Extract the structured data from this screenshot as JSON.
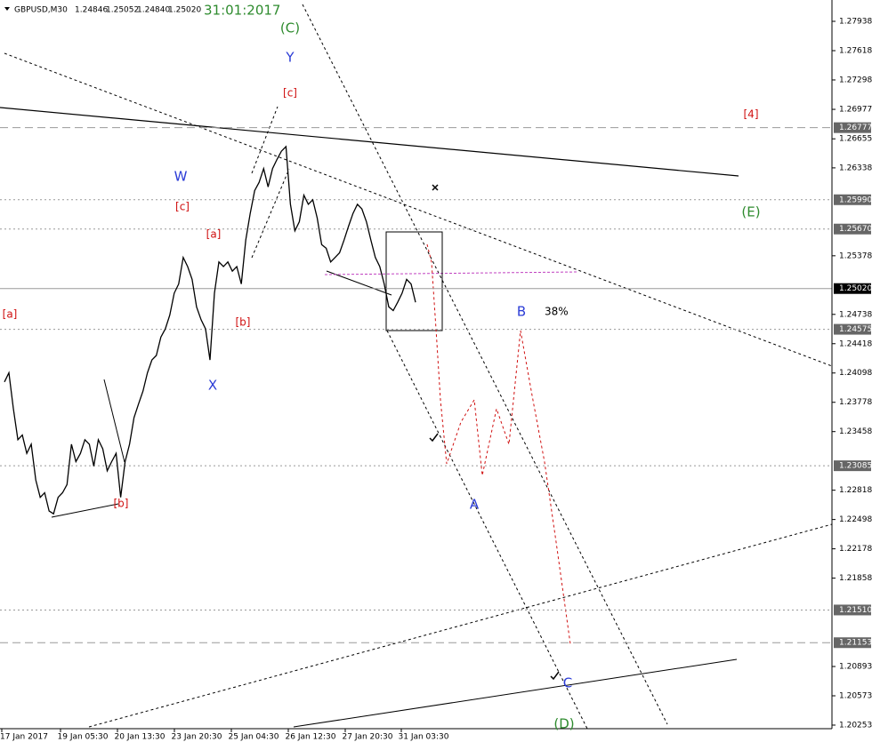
{
  "chart_data": {
    "type": "line",
    "symbol": "GBPUSD,M30",
    "ohlc": [
      1.24846,
      1.25052,
      {
        "value": 1.2484,
        "label": "1.24840"
      },
      {
        "value": 1.2502,
        "label": "1.25020"
      }
    ],
    "date": "31:01:2017",
    "x_labels": [
      "17 Jan 2017",
      "19 Jan 05:30",
      "20 Jan 13:30",
      "23 Jan 20:30",
      "25 Jan 04:30",
      "26 Jan 12:30",
      "27 Jan 20:30",
      "31 Jan 03:30"
    ],
    "series": [
      {
        "name": "GBPUSD",
        "color": "#000000",
        "values": [
          1.24,
          1.241,
          1.2371,
          1.2337,
          1.2342,
          1.2322,
          1.2332,
          1.2293,
          1.2274,
          1.2279,
          1.2259,
          1.2256,
          1.2274,
          1.2279,
          1.2288,
          1.2332,
          1.2313,
          1.2322,
          1.2337,
          1.2332,
          1.2308,
          1.2337,
          1.2327,
          1.2303,
          1.2313,
          1.2322,
          1.2274,
          1.2313,
          1.2332,
          1.2361,
          1.2376,
          1.239,
          1.241,
          1.2424,
          1.2429,
          1.2449,
          1.2458,
          1.2473,
          1.2497,
          1.2507,
          1.2536,
          1.2526,
          1.2512,
          1.2482,
          1.2468,
          1.2458,
          1.2424,
          1.2497,
          1.2531,
          1.2526,
          1.2531,
          1.2521,
          1.2526,
          1.2507,
          1.2555,
          1.2584,
          1.2609,
          1.2618,
          1.2633,
          1.2613,
          1.2633,
          1.2643,
          1.2652,
          1.2657,
          1.2594,
          1.2565,
          1.2575,
          1.2604,
          1.2594,
          1.2599,
          1.2579,
          1.255,
          1.2546,
          1.2531,
          1.2536,
          1.2541,
          1.2555,
          1.257,
          1.2584,
          1.2594,
          1.2589,
          1.2575,
          1.2555,
          1.2536,
          1.2526,
          1.2507,
          1.2482,
          1.2478,
          1.2487,
          1.2497,
          1.2512,
          1.2507,
          1.2487
        ]
      }
    ],
    "ylim": [
      1.20214,
      1.28171
    ],
    "yticks": [
      1.27938,
      1.27618,
      1.27298,
      1.26977,
      1.26655,
      1.26338,
      1.25378,
      1.24738,
      1.24418,
      1.24098,
      1.23778,
      1.23458,
      1.22818,
      1.22498,
      1.22178,
      1.21858,
      1.20893,
      1.20573,
      1.20253
    ],
    "levels": [
      {
        "value": 1.26777,
        "style": "dash"
      },
      {
        "value": 1.2599,
        "label": "1.25990",
        "style": "dot"
      },
      {
        "value": 1.2567,
        "label": "1.25670",
        "style": "dot"
      },
      {
        "value": 1.2502,
        "label": "1.25020",
        "style": "solid"
      },
      {
        "value": 1.24575,
        "style": "dot"
      },
      {
        "value": 1.23085,
        "style": "dot"
      },
      {
        "value": 1.2151,
        "label": "1.21510",
        "style": "dot"
      },
      {
        "value": 1.21153,
        "style": "dash"
      }
    ],
    "annotations": [
      {
        "text": "(C)",
        "color": "#2e8b2e"
      },
      {
        "text": "Y",
        "color": "#2a3bd6"
      },
      {
        "text": "[c]",
        "color": "#d01010"
      },
      {
        "text": "W",
        "color": "#2a3bd6"
      },
      {
        "text": "[c]",
        "color": "#d01010"
      },
      {
        "text": "[a]",
        "color": "#d01010"
      },
      {
        "text": "[a]",
        "color": "#d01010"
      },
      {
        "text": "[b]",
        "color": "#d01010"
      },
      {
        "text": "X",
        "color": "#2a3bd6"
      },
      {
        "text": "[b]",
        "color": "#d01010"
      },
      {
        "text": "[4]",
        "color": "#d01010"
      },
      {
        "text": "(E)",
        "color": "#2e8b2e"
      },
      {
        "text": "B",
        "color": "#2a3bd6"
      },
      {
        "text": "38%",
        "color": "#000000"
      },
      {
        "text": "A",
        "color": "#2a3bd6"
      },
      {
        "text": "C",
        "color": "#2a3bd6"
      },
      {
        "text": "(D)",
        "color": "#2e8b2e"
      }
    ]
  }
}
